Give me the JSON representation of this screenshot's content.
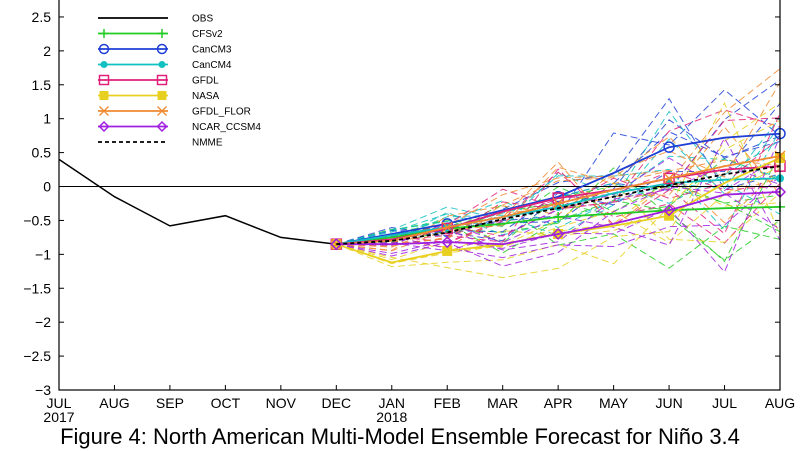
{
  "caption": "Figure 4: North American Multi-Model Ensemble Forecast for Niño 3.4",
  "chart_data": {
    "type": "line",
    "title": "",
    "xlabel": "",
    "ylabel": "",
    "x_categories": [
      "JUL",
      "AUG",
      "SEP",
      "OCT",
      "NOV",
      "DEC",
      "JAN",
      "FEB",
      "MAR",
      "APR",
      "MAY",
      "JUN",
      "JUL",
      "AUG"
    ],
    "year_labels": [
      {
        "x_index": 0,
        "text": "2017"
      },
      {
        "x_index": 6,
        "text": "2018"
      }
    ],
    "ylim": [
      -3,
      2.75
    ],
    "y_ticks": [
      -3,
      -2.5,
      -2,
      -1.5,
      -1,
      -0.5,
      0,
      0.5,
      1,
      1.5,
      2,
      2.5
    ],
    "y_tick_labels": [
      "−3",
      "−2.5",
      "−2",
      "−1.5",
      "−1",
      "−0.5",
      "0",
      "0.5",
      "1",
      "1.5",
      "2",
      "2.5"
    ],
    "zero_line": true,
    "legend_position": "top-left",
    "series": [
      {
        "name": "OBS",
        "color": "#000000",
        "style": "solid",
        "marker": "none",
        "x_start": 0,
        "values": [
          0.4,
          -0.15,
          -0.58,
          -0.43,
          -0.75,
          -0.85
        ]
      },
      {
        "name": "CFSv2",
        "color": "#22cc22",
        "style": "solid",
        "marker": "plus",
        "x_start": 5,
        "values": [
          -0.85,
          -0.75,
          -0.62,
          -0.55,
          -0.45,
          -0.4,
          -0.35,
          -0.32,
          -0.3
        ]
      },
      {
        "name": "CanCM3",
        "color": "#1f3fd6",
        "style": "solid",
        "marker": "circle",
        "x_start": 5,
        "values": [
          -0.85,
          -0.7,
          -0.55,
          -0.35,
          -0.15,
          0.2,
          0.58,
          0.72,
          0.78
        ]
      },
      {
        "name": "CanCM4",
        "color": "#11c0c0",
        "style": "solid",
        "marker": "dot",
        "x_start": 5,
        "values": [
          -0.85,
          -0.72,
          -0.6,
          -0.45,
          -0.3,
          -0.1,
          0.05,
          0.1,
          0.12
        ]
      },
      {
        "name": "GFDL",
        "color": "#e0207a",
        "style": "solid",
        "marker": "square",
        "x_start": 5,
        "values": [
          -0.85,
          -0.78,
          -0.62,
          -0.37,
          -0.17,
          -0.05,
          0.12,
          0.25,
          0.3
        ]
      },
      {
        "name": "NASA",
        "color": "#e8d020",
        "style": "solid",
        "marker": "filled-square",
        "x_start": 5,
        "values": [
          -0.85,
          -1.12,
          -0.95,
          -0.85,
          -0.7,
          -0.58,
          -0.43,
          0.05,
          0.42
        ]
      },
      {
        "name": "GFDL_FLOR",
        "color": "#f08a30",
        "style": "solid",
        "marker": "x",
        "x_start": 5,
        "values": [
          -0.85,
          -0.8,
          -0.6,
          -0.45,
          -0.25,
          -0.05,
          0.12,
          0.3,
          0.45
        ]
      },
      {
        "name": "NCAR_CCSM4",
        "color": "#a020e0",
        "style": "solid",
        "marker": "diamond",
        "x_start": 5,
        "values": [
          -0.85,
          -0.85,
          -0.82,
          -0.85,
          -0.7,
          -0.55,
          -0.35,
          -0.12,
          -0.08
        ]
      },
      {
        "name": "NMME",
        "color": "#000000",
        "style": "dashed",
        "marker": "none",
        "x_start": 5,
        "values": [
          -0.85,
          -0.8,
          -0.68,
          -0.48,
          -0.32,
          -0.15,
          0.02,
          0.18,
          0.3
        ]
      }
    ]
  }
}
